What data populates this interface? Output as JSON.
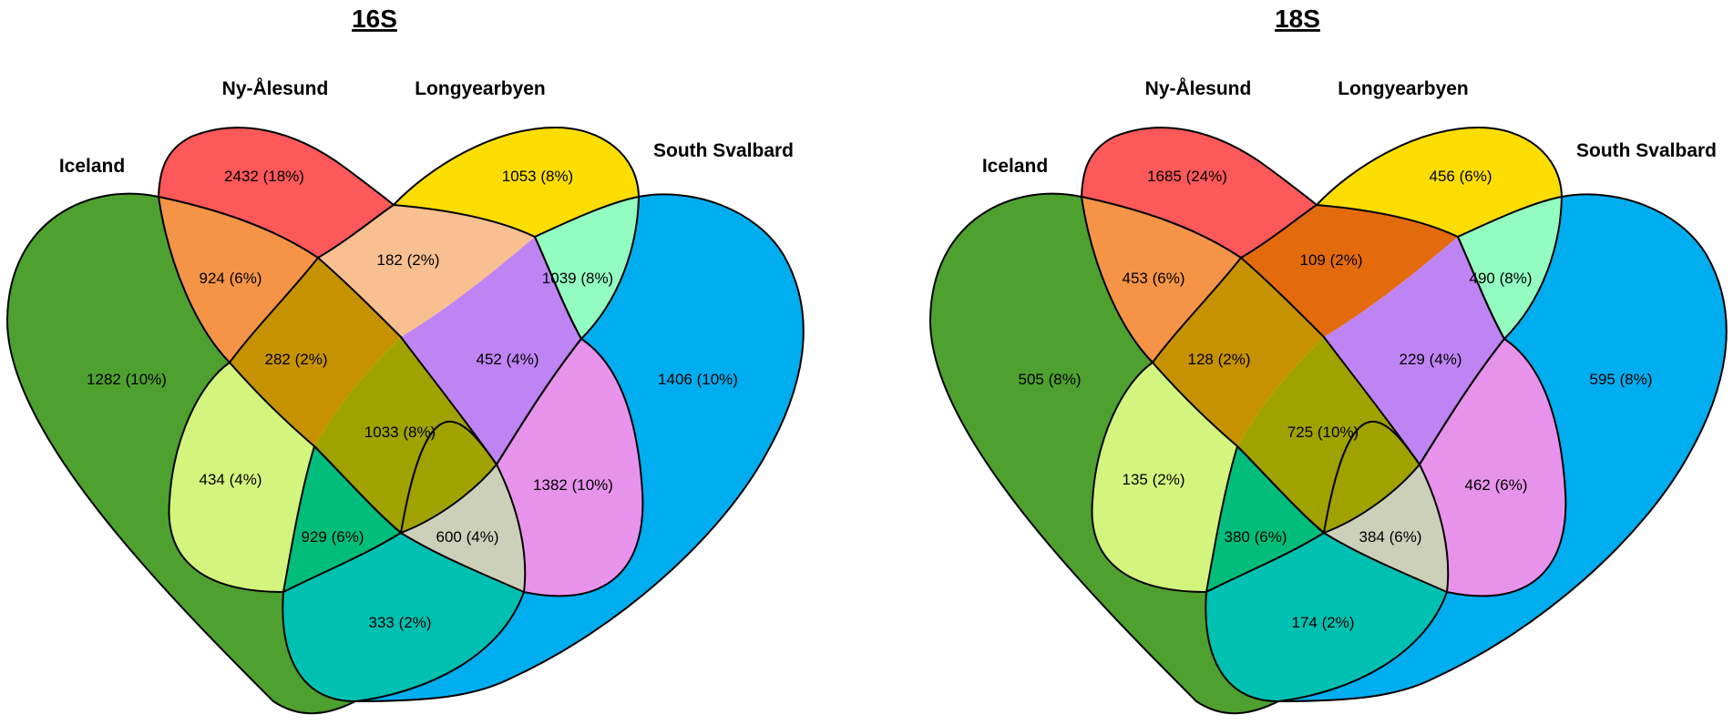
{
  "panels": [
    {
      "title": "16S",
      "sets": [
        "Iceland",
        "Ny-Ålesund",
        "Longyearbyen",
        "South Svalbard"
      ],
      "regions": {
        "I": "1282 (10%)",
        "N": "2432 (18%)",
        "L": "1053 (8%)",
        "S": "1406 (10%)",
        "IN": "924 (6%)",
        "NL": "182 (2%)",
        "LS": "1039 (8%)",
        "INL": "282 (2%)",
        "NLS": "452 (4%)",
        "INLS": "1033 (8%)",
        "IL": "434 (4%)",
        "NS": "1382 (10%)",
        "ILS": "929 (6%)",
        "INS": "600 (4%)",
        "IS": "333 (2%)"
      }
    },
    {
      "title": "18S",
      "sets": [
        "Iceland",
        "Ny-Ålesund",
        "Longyearbyen",
        "South Svalbard"
      ],
      "regions": {
        "I": "505 (8%)",
        "N": "1685 (24%)",
        "L": "456 (6%)",
        "S": "595 (8%)",
        "IN": "453 (6%)",
        "NL": "109 (2%)",
        "LS": "490 (8%)",
        "INL": "128 (2%)",
        "NLS": "229 (4%)",
        "INLS": "725 (10%)",
        "IL": "135 (2%)",
        "NS": "462 (6%)",
        "ILS": "380 (6%)",
        "INS": "384 (6%)",
        "IS": "174 (2%)"
      }
    }
  ],
  "colors": {
    "Iceland": "#4ea02f",
    "Ny-Ålesund": "#fd585a",
    "Longyearbyen": "#fbdd00",
    "South Svalbard": "#00adef",
    "IN": "#f59446",
    "NL_16S": "#f8bf91",
    "NL_18S": "#e46a0e",
    "LS": "#93fdc1",
    "INL": "#c79200",
    "NLS": "#bf84f4",
    "INLS": "#a0a200",
    "IL": "#d3f57d",
    "NS": "#e793ec",
    "ILS": "#00bd7b",
    "INS": "#ccd0b8",
    "IS": "#00c1b1"
  }
}
